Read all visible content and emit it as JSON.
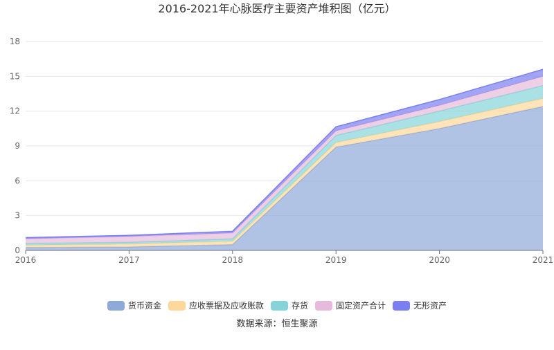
{
  "chart_data": {
    "type": "area",
    "stacked": true,
    "title": "2016-2021年心脉医疗主要资产堆积图（亿元）",
    "source": "数据来源：恒生聚源",
    "categories": [
      "2016",
      "2017",
      "2018",
      "2019",
      "2020",
      "2021"
    ],
    "ylim": [
      0,
      18
    ],
    "yticks": [
      0,
      3,
      6,
      9,
      12,
      15,
      18
    ],
    "grid": true,
    "legend_position": "bottom",
    "series": [
      {
        "name": "货币资金",
        "color": "#8eaad8",
        "values": [
          0.25,
          0.3,
          0.5,
          8.9,
          10.5,
          12.4
        ]
      },
      {
        "name": "应收票据及应收账款",
        "color": "#fdd89a",
        "values": [
          0.2,
          0.25,
          0.3,
          0.4,
          0.6,
          0.7
        ]
      },
      {
        "name": "存货",
        "color": "#86d4d8",
        "values": [
          0.15,
          0.15,
          0.2,
          0.6,
          0.9,
          1.1
        ]
      },
      {
        "name": "固定资产合计",
        "color": "#e5badc",
        "values": [
          0.4,
          0.5,
          0.5,
          0.4,
          0.5,
          0.8
        ]
      },
      {
        "name": "无形资产",
        "color": "#7b7ef0",
        "values": [
          0.1,
          0.1,
          0.15,
          0.35,
          0.5,
          0.6
        ]
      }
    ]
  }
}
